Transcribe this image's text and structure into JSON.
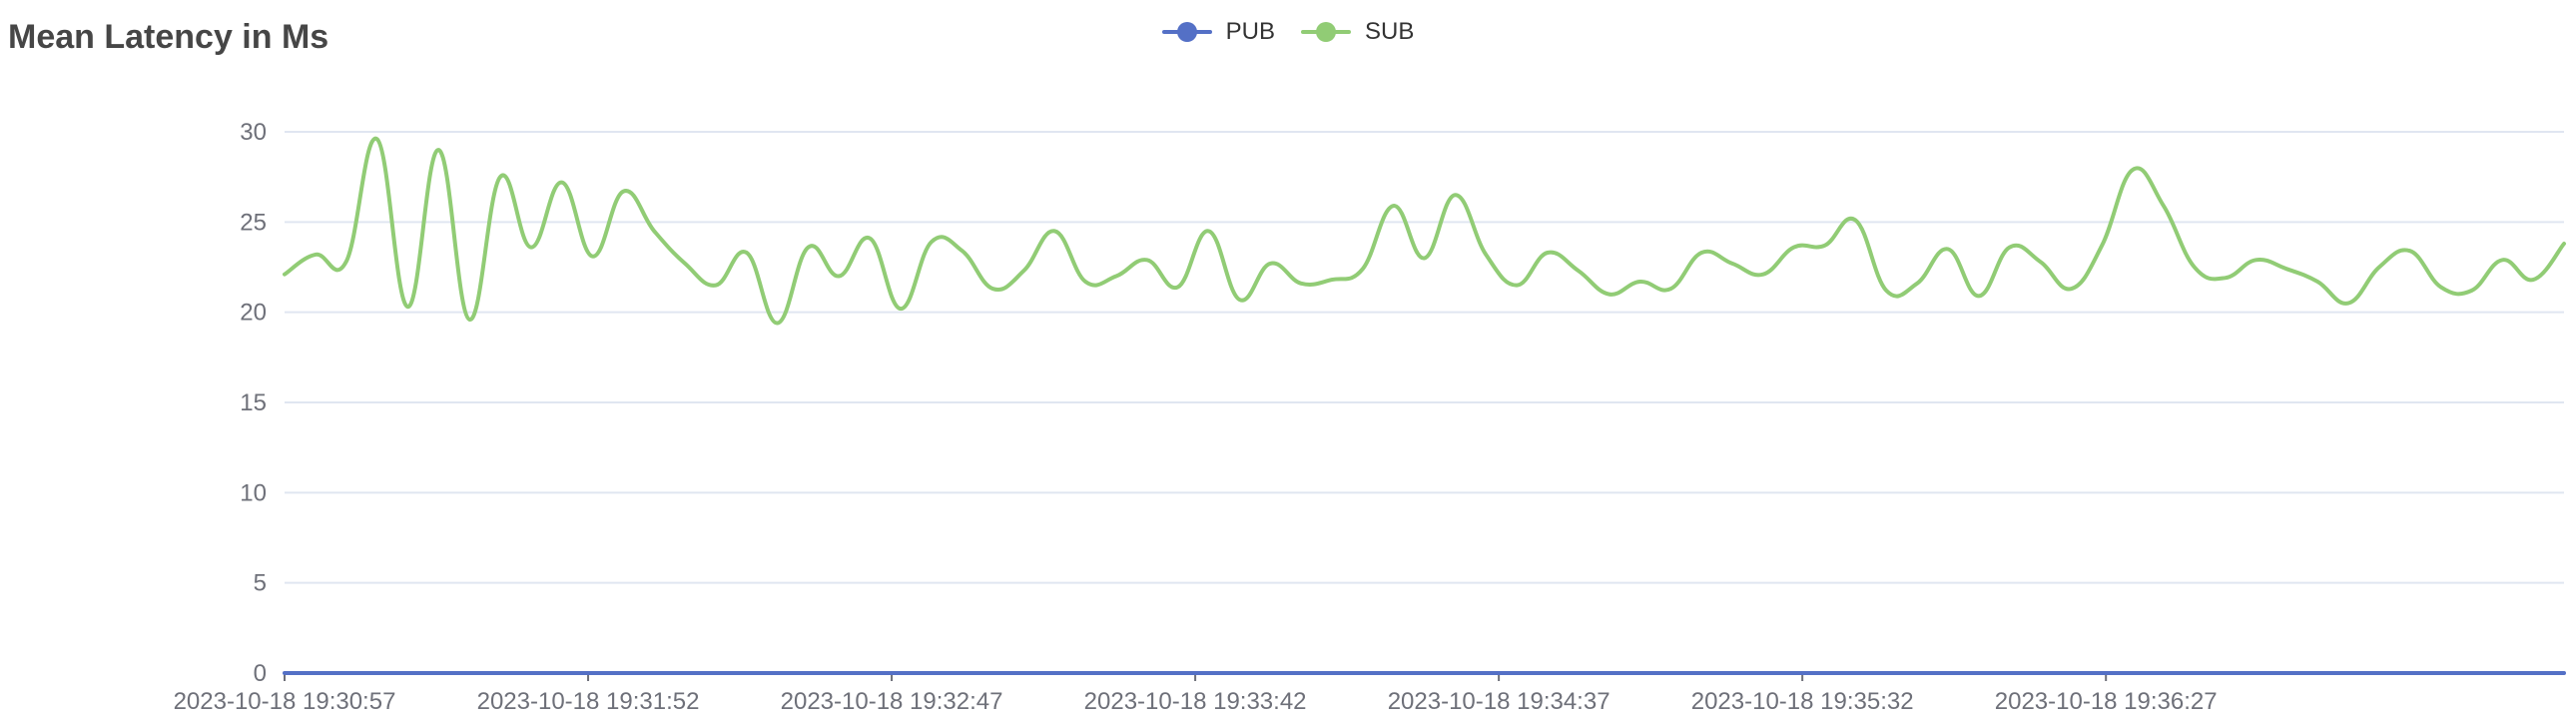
{
  "chart_data": {
    "type": "line",
    "title": "Mean Latency in Ms",
    "ylim": [
      0,
      30
    ],
    "yticks": [
      0,
      5,
      10,
      15,
      20,
      25,
      30
    ],
    "grid": true,
    "legend_position": "top-center",
    "x_start": "2023-10-18 19:30:57",
    "x_end": "2023-10-18 19:37:50",
    "x_tick_labels": [
      "2023-10-18 19:30:57",
      "2023-10-18 19:31:52",
      "2023-10-18 19:32:47",
      "2023-10-18 19:33:42",
      "2023-10-18 19:34:37",
      "2023-10-18 19:35:32",
      "2023-10-18 19:36:27"
    ],
    "series": [
      {
        "name": "PUB",
        "color": "#5470c6",
        "values": [
          0,
          0
        ]
      },
      {
        "name": "SUB",
        "color": "#91cc75",
        "values": [
          22.1,
          23.2,
          22.8,
          29.6,
          20.3,
          29.0,
          19.6,
          27.5,
          23.6,
          27.2,
          23.1,
          26.7,
          24.5,
          22.7,
          21.5,
          23.3,
          19.4,
          23.6,
          22.0,
          24.1,
          20.2,
          23.9,
          23.4,
          21.3,
          22.3,
          24.5,
          21.7,
          22.0,
          22.9,
          21.4,
          24.5,
          20.7,
          22.7,
          21.6,
          21.8,
          22.4,
          25.9,
          23.0,
          26.5,
          23.2,
          21.5,
          23.3,
          22.3,
          21.0,
          21.7,
          21.3,
          23.3,
          22.7,
          22.1,
          23.6,
          23.7,
          25.1,
          21.2,
          21.6,
          23.5,
          20.9,
          23.6,
          22.8,
          21.3,
          23.7,
          27.9,
          25.9,
          22.5,
          21.9,
          22.9,
          22.4,
          21.7,
          20.5,
          22.5,
          23.4,
          21.4,
          21.2,
          22.9,
          21.8,
          23.8
        ]
      }
    ]
  }
}
